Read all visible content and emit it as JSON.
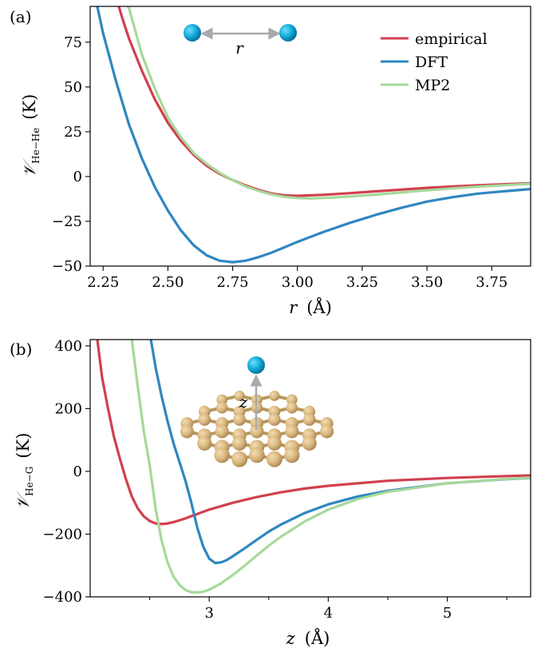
{
  "chart_data": [
    {
      "type": "line",
      "panel_label": "(a)",
      "ylabel": "𝒱",
      "ylabel_sub": "He−He",
      "ylabel_unit": "(K)",
      "xlabel": "r",
      "xlabel_unit": "(Å)",
      "xlim": [
        2.2,
        3.9
      ],
      "ylim": [
        -50,
        95
      ],
      "xticks": [
        "2.25",
        "2.50",
        "2.75",
        "3.00",
        "3.25",
        "3.50",
        "3.75"
      ],
      "xtick_values": [
        2.25,
        2.5,
        2.75,
        3.0,
        3.25,
        3.5,
        3.75
      ],
      "yticks": [
        "75",
        "50",
        "25",
        "0",
        "−25",
        "−50"
      ],
      "ytick_values": [
        75,
        50,
        25,
        0,
        -25,
        -50
      ],
      "legend_position": "top-right",
      "inset_label": "r",
      "series": [
        {
          "name": "empirical",
          "color": "#d1404e",
          "x": [
            2.3,
            2.325,
            2.35,
            2.4,
            2.45,
            2.5,
            2.55,
            2.6,
            2.65,
            2.7,
            2.75,
            2.8,
            2.85,
            2.9,
            2.95,
            3.0,
            3.1,
            3.2,
            3.3,
            3.4,
            3.5,
            3.6,
            3.7,
            3.8,
            3.9
          ],
          "y": [
            100,
            88,
            77,
            59,
            43,
            30,
            20,
            12,
            6,
            1.5,
            -2,
            -5,
            -7.5,
            -9.5,
            -10.5,
            -10.8,
            -10.2,
            -9.3,
            -8.3,
            -7.3,
            -6.3,
            -5.5,
            -4.9,
            -4.3,
            -3.8
          ]
        },
        {
          "name": "DFT",
          "color": "#2f86c1",
          "x": [
            2.22,
            2.25,
            2.3,
            2.35,
            2.4,
            2.45,
            2.5,
            2.55,
            2.6,
            2.65,
            2.7,
            2.75,
            2.8,
            2.85,
            2.9,
            2.95,
            3.0,
            3.1,
            3.2,
            3.3,
            3.4,
            3.5,
            3.6,
            3.7,
            3.8,
            3.9
          ],
          "y": [
            100,
            80,
            53,
            29,
            10,
            -6,
            -19,
            -30,
            -38.5,
            -44,
            -47,
            -47.8,
            -47,
            -45,
            -42.5,
            -39.5,
            -36.5,
            -31,
            -26,
            -21.5,
            -17.5,
            -14,
            -11.5,
            -9.5,
            -8.2,
            -7
          ]
        },
        {
          "name": "MP2",
          "color": "#a6d99a",
          "x": [
            2.33,
            2.35,
            2.4,
            2.45,
            2.5,
            2.55,
            2.6,
            2.65,
            2.7,
            2.75,
            2.8,
            2.85,
            2.9,
            2.95,
            3.0,
            3.05,
            3.1,
            3.2,
            3.3,
            3.4,
            3.5,
            3.6,
            3.7,
            3.8,
            3.9
          ],
          "y": [
            100,
            94,
            68,
            49,
            33,
            22,
            13,
            7,
            2,
            -2,
            -5.5,
            -8,
            -10,
            -11.3,
            -12,
            -12.2,
            -12,
            -11.2,
            -10.1,
            -8.9,
            -7.7,
            -6.6,
            -5.6,
            -4.8,
            -4.1
          ]
        }
      ]
    },
    {
      "type": "line",
      "panel_label": "(b)",
      "ylabel": "𝒱",
      "ylabel_sub": "He−G",
      "ylabel_unit": "(K)",
      "xlabel": "z",
      "xlabel_unit": "(Å)",
      "xlim": [
        2.0,
        5.7
      ],
      "ylim": [
        -400,
        420
      ],
      "xticks": [
        "3",
        "4",
        "5"
      ],
      "xtick_values": [
        3,
        4,
        5
      ],
      "minor_xtick_values": [
        2.5,
        3.5,
        4.5,
        5.5
      ],
      "yticks": [
        "400",
        "200",
        "0",
        "−200",
        "−400"
      ],
      "ytick_values": [
        400,
        200,
        0,
        -200,
        -400
      ],
      "inset_label": "z",
      "series": [
        {
          "name": "empirical",
          "color": "#d1404e",
          "x": [
            2.06,
            2.1,
            2.15,
            2.2,
            2.25,
            2.3,
            2.35,
            2.4,
            2.45,
            2.5,
            2.55,
            2.6,
            2.65,
            2.7,
            2.8,
            2.9,
            3.0,
            3.2,
            3.4,
            3.6,
            3.8,
            4.0,
            4.5,
            5.0,
            5.5,
            5.7
          ],
          "y": [
            420,
            300,
            200,
            110,
            40,
            -25,
            -80,
            -118,
            -143,
            -158,
            -166,
            -168,
            -166,
            -162,
            -150,
            -136,
            -122,
            -100,
            -82,
            -67,
            -55,
            -46,
            -30,
            -21,
            -15,
            -13
          ]
        },
        {
          "name": "DFT",
          "color": "#2f86c1",
          "x": [
            2.51,
            2.55,
            2.6,
            2.65,
            2.7,
            2.75,
            2.8,
            2.85,
            2.9,
            2.95,
            3.0,
            3.05,
            3.1,
            3.15,
            3.2,
            3.3,
            3.4,
            3.5,
            3.6,
            3.8,
            4.0,
            4.25,
            4.5,
            5.0,
            5.5,
            5.7
          ],
          "y": [
            420,
            330,
            240,
            160,
            90,
            30,
            -30,
            -100,
            -180,
            -240,
            -278,
            -292,
            -290,
            -282,
            -270,
            -245,
            -218,
            -192,
            -170,
            -133,
            -105,
            -80,
            -62,
            -38,
            -25,
            -21
          ]
        },
        {
          "name": "MP2",
          "color": "#a6d99a",
          "x": [
            2.35,
            2.4,
            2.45,
            2.5,
            2.55,
            2.6,
            2.65,
            2.7,
            2.75,
            2.8,
            2.85,
            2.9,
            2.95,
            3.0,
            3.1,
            3.2,
            3.3,
            3.4,
            3.5,
            3.6,
            3.8,
            4.0,
            4.25,
            4.5,
            5.0,
            5.5,
            5.7
          ],
          "y": [
            420,
            270,
            130,
            20,
            -120,
            -220,
            -290,
            -335,
            -362,
            -378,
            -385,
            -386,
            -384,
            -377,
            -357,
            -330,
            -300,
            -268,
            -237,
            -209,
            -160,
            -122,
            -88,
            -65,
            -38,
            -24,
            -20
          ]
        }
      ]
    }
  ]
}
